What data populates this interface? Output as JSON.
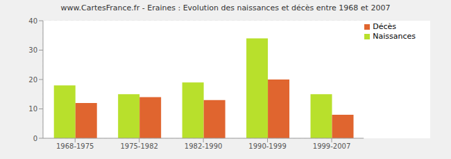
{
  "chart_data": {
    "type": "bar",
    "title": "www.CartesFrance.fr - Eraines : Evolution des naissances et décès entre 1968 et 2007",
    "categories": [
      "1968-1975",
      "1975-1982",
      "1982-1990",
      "1990-1999",
      "1999-2007"
    ],
    "series": [
      {
        "name": "Naissances",
        "color": "#b8e02c",
        "values": [
          18,
          15,
          19,
          34,
          15
        ]
      },
      {
        "name": "Décès",
        "color": "#e0652f",
        "values": [
          12,
          14,
          13,
          20,
          8
        ]
      }
    ],
    "ylim": [
      0,
      40
    ],
    "yticks": [
      0,
      10,
      20,
      30,
      40
    ],
    "grid": true,
    "legend": "upper right"
  }
}
